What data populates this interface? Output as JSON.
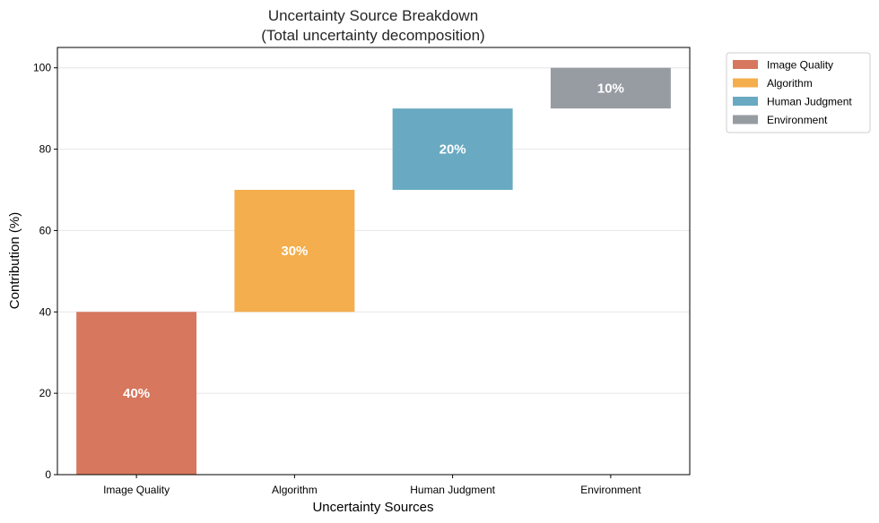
{
  "chart_data": {
    "type": "bar",
    "subtype": "waterfall",
    "title": "Uncertainty Source Breakdown",
    "subtitle": "(Total uncertainty decomposition)",
    "xlabel": "Uncertainty Sources",
    "ylabel": "Contribution (%)",
    "categories": [
      "Image Quality",
      "Algorithm",
      "Human Judgment",
      "Environment"
    ],
    "values": [
      40,
      30,
      20,
      10
    ],
    "bases": [
      0,
      40,
      70,
      90
    ],
    "bar_labels": [
      "40%",
      "30%",
      "20%",
      "10%"
    ],
    "colors": [
      "#d6775e",
      "#f4ae4d",
      "#69a9c2",
      "#979ca3"
    ],
    "ylim": [
      0,
      105
    ],
    "yticks": [
      0,
      20,
      40,
      60,
      80,
      100
    ],
    "grid": "y",
    "legend": {
      "placement": "outside-top-right",
      "entries": [
        "Image Quality",
        "Algorithm",
        "Human Judgment",
        "Environment"
      ]
    }
  }
}
